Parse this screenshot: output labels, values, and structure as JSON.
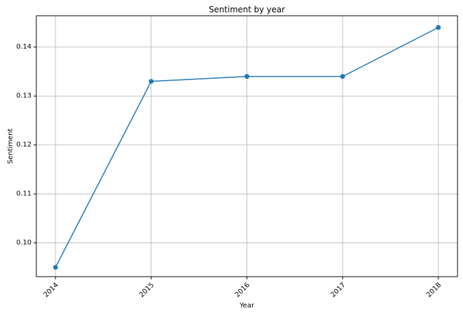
{
  "chart_data": {
    "type": "line",
    "title": "Sentiment by year",
    "xlabel": "Year",
    "ylabel": "Sentiment",
    "x": [
      "2014",
      "2015",
      "2016",
      "2017",
      "2018"
    ],
    "series": [
      {
        "values": [
          0.095,
          0.133,
          0.134,
          0.134,
          0.144
        ],
        "color": "#1f77b4"
      }
    ],
    "ylim": [
      0.0931,
      0.1464
    ],
    "yticks": [
      0.1,
      0.11,
      0.12,
      0.13,
      0.14
    ],
    "ytick_labels": [
      "0.10",
      "0.11",
      "0.12",
      "0.13",
      "0.14"
    ],
    "grid": true,
    "marker": "circle",
    "xtick_rotation": -45,
    "grid_color": "#b0b0b0",
    "axis_color": "#000000"
  }
}
